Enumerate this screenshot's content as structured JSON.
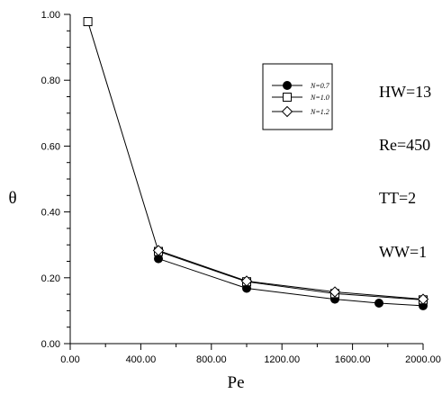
{
  "chart_data": {
    "type": "line",
    "xlabel": "Pe",
    "ylabel": "θ",
    "xlim": [
      0,
      2000
    ],
    "ylim": [
      0,
      1.0
    ],
    "x_ticks": [
      "0.00",
      "400.00",
      "800.00",
      "1200.00",
      "1600.00",
      "2000.00"
    ],
    "y_ticks": [
      "0.00",
      "0.20",
      "0.40",
      "0.60",
      "0.80",
      "1.00"
    ],
    "x_tick_values": [
      0,
      400,
      800,
      1200,
      1600,
      2000
    ],
    "y_tick_values": [
      0,
      0.2,
      0.4,
      0.6,
      0.8,
      1.0
    ],
    "legend_position": "top-right",
    "grid": false,
    "series": [
      {
        "name": "N=0.7",
        "marker": "filled-circle",
        "x": [
          500,
          1000,
          1500,
          1750,
          2000
        ],
        "y": [
          0.258,
          0.168,
          0.135,
          0.123,
          0.115
        ]
      },
      {
        "name": "N=1.0",
        "marker": "open-square",
        "x": [
          100,
          500,
          1000,
          1500,
          2000
        ],
        "y": [
          0.978,
          0.28,
          0.188,
          0.152,
          0.133
        ]
      },
      {
        "name": "N=1.2",
        "marker": "open-diamond",
        "x": [
          500,
          1000,
          1500,
          2000
        ],
        "y": [
          0.283,
          0.19,
          0.157,
          0.135
        ]
      }
    ],
    "annotations": [
      "HW=13",
      "Re=450",
      "TT=2",
      "WW=1"
    ]
  }
}
